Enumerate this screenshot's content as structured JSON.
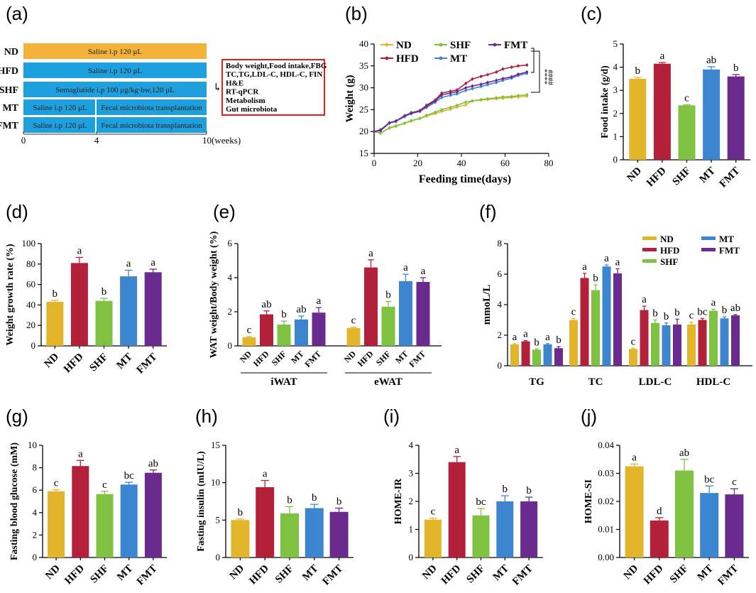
{
  "colors": {
    "ND": "#E3B52A",
    "HFD": "#B3203A",
    "SHF": "#7FC241",
    "MT": "#3D86CF",
    "FMT": "#6B2A8E",
    "timeline_orange": "#F4B23A",
    "timeline_blue": "#1FA0DE",
    "box_red": "#E0201B"
  },
  "chart_data": [
    {
      "panel": "(a)",
      "type": "table",
      "rows": [
        {
          "group": "ND",
          "segments": [
            "Saline i.p 120 μL"
          ]
        },
        {
          "group": "HFD",
          "segments": [
            "Saline i.p 120 μL"
          ]
        },
        {
          "group": "SHF",
          "segments": [
            "Semaglutide i.p 100 μg/kg·bw,120 μL"
          ]
        },
        {
          "group": "MT",
          "segments": [
            "Saline i.p 120 μL",
            "Fecal microbiota transplantation"
          ]
        },
        {
          "group": "FMT",
          "segments": [
            "Saline i.p 120 μL",
            "Fecal microbiota transplantation"
          ]
        }
      ],
      "split_week": 4,
      "total_weeks": 10,
      "axis_ticks": [
        "0",
        "4",
        "10(weeks)"
      ],
      "arrow_symbol": "↳",
      "outcomes": [
        "Body weight,Food intake,FBG",
        "TC,TG,LDL-C, HDL-C, FIN",
        "H&E",
        "RT-qPCR",
        "Metabolism",
        "Gut microbiota"
      ]
    },
    {
      "panel": "(b)",
      "type": "line",
      "xlabel": "Feeding time(days)",
      "ylabel": "Weight (g)",
      "xlim": [
        0,
        80
      ],
      "ylim": [
        15,
        40
      ],
      "xticks": [
        0,
        20,
        40,
        60,
        80
      ],
      "yticks": [
        15,
        20,
        25,
        30,
        35,
        40
      ],
      "legend": [
        "ND",
        "SHF",
        "FMT",
        "HFD",
        "MT"
      ],
      "significance": [
        "****",
        "####"
      ],
      "x": [
        0,
        3,
        7,
        10,
        14,
        17,
        21,
        24,
        28,
        31,
        35,
        38,
        42,
        45,
        49,
        52,
        56,
        59,
        63,
        66,
        70
      ],
      "series": [
        {
          "name": "ND",
          "values": [
            20,
            19.6,
            20.9,
            21.3,
            21.9,
            22.4,
            23.0,
            23.5,
            24.1,
            24.6,
            25.1,
            25.6,
            26.1,
            27.0,
            27.2,
            27.3,
            27.5,
            27.6,
            27.8,
            27.9,
            28.1
          ]
        },
        {
          "name": "HFD",
          "values": [
            20,
            20.4,
            22.0,
            22.4,
            23.6,
            24.3,
            24.8,
            26.0,
            27.2,
            28.8,
            29.2,
            29.5,
            31.0,
            32.0,
            32.6,
            33.0,
            33.6,
            34.3,
            34.7,
            35.0,
            35.2
          ]
        },
        {
          "name": "SHF",
          "values": [
            20,
            19.7,
            20.8,
            21.2,
            21.9,
            22.5,
            23.0,
            23.7,
            24.4,
            25.0,
            25.5,
            26.0,
            26.7,
            27.0,
            27.3,
            27.5,
            27.7,
            27.9,
            28.0,
            28.2,
            28.4
          ]
        },
        {
          "name": "MT",
          "values": [
            20,
            20.2,
            21.9,
            22.3,
            23.4,
            24.1,
            24.6,
            25.5,
            26.7,
            27.8,
            28.3,
            28.6,
            29.4,
            29.8,
            30.3,
            30.7,
            31.2,
            31.7,
            32.2,
            32.8,
            33.3
          ]
        },
        {
          "name": "FMT",
          "values": [
            20,
            20.3,
            22.0,
            22.4,
            23.6,
            24.2,
            24.7,
            25.8,
            27.0,
            28.4,
            28.8,
            29.1,
            30.0,
            30.4,
            30.8,
            31.2,
            31.7,
            32.1,
            32.5,
            33.1,
            33.6
          ]
        }
      ]
    },
    {
      "panel": "(c)",
      "type": "bar",
      "ylabel": "Food intake (g/d)",
      "ylim": [
        0,
        5
      ],
      "yticks": [
        0,
        1,
        2,
        3,
        4,
        5
      ],
      "categories": [
        "ND",
        "HFD",
        "SHF",
        "MT",
        "FMT"
      ],
      "values": [
        3.5,
        4.15,
        2.35,
        3.9,
        3.6
      ],
      "errors": [
        0.06,
        0.05,
        0.02,
        0.12,
        0.08
      ],
      "letters": [
        "b",
        "a",
        "c",
        "ab",
        "b"
      ]
    },
    {
      "panel": "(d)",
      "type": "bar",
      "ylabel": "Weight growth rate (%)",
      "ylim": [
        0,
        100
      ],
      "yticks": [
        0,
        20,
        40,
        60,
        80,
        100
      ],
      "categories": [
        "ND",
        "HFD",
        "SHF",
        "MT",
        "FMT"
      ],
      "values": [
        43,
        81,
        44,
        68,
        72
      ],
      "errors": [
        1.5,
        5.5,
        2.5,
        6,
        3
      ],
      "letters": [
        "b",
        "a",
        "b",
        "a",
        "a"
      ]
    },
    {
      "panel": "(e)",
      "type": "bar",
      "ylabel": "WAT weight/Body weight (%)",
      "ylim": [
        0,
        6
      ],
      "yticks": [
        0,
        2,
        4,
        6
      ],
      "groups": [
        "iWAT",
        "eWAT"
      ],
      "categories": [
        "ND",
        "HFD",
        "SHF",
        "MT",
        "FMT"
      ],
      "series": [
        {
          "name": "iWAT",
          "values": [
            0.5,
            1.85,
            1.25,
            1.55,
            1.95
          ],
          "errors": [
            0.05,
            0.2,
            0.2,
            0.2,
            0.3
          ],
          "letters": [
            "c",
            "ab",
            "b",
            "ab",
            "a"
          ]
        },
        {
          "name": "eWAT",
          "values": [
            1.05,
            4.6,
            2.3,
            3.8,
            3.75
          ],
          "errors": [
            0.05,
            0.45,
            0.3,
            0.4,
            0.25
          ],
          "letters": [
            "c",
            "a",
            "b",
            "a",
            "a"
          ]
        }
      ]
    },
    {
      "panel": "(f)",
      "type": "bar",
      "ylabel": "mmoL/L",
      "ylim": [
        0,
        8
      ],
      "yticks": [
        0,
        2,
        4,
        6,
        8
      ],
      "groups": [
        "TG",
        "TC",
        "LDL-C",
        "HDL-C"
      ],
      "legend": [
        "ND",
        "MT",
        "HFD",
        "FMT",
        "SHF"
      ],
      "series": [
        {
          "name": "ND",
          "values": [
            1.4,
            3.0,
            1.1,
            2.7
          ],
          "errors": [
            0.05,
            0.1,
            0.05,
            0.15
          ],
          "letters": [
            "a",
            "c",
            "c",
            "c"
          ]
        },
        {
          "name": "HFD",
          "values": [
            1.6,
            5.75,
            3.65,
            3.0
          ],
          "errors": [
            0.05,
            0.3,
            0.25,
            0.1
          ],
          "letters": [
            "a",
            "a",
            "a",
            "bc"
          ]
        },
        {
          "name": "SHF",
          "values": [
            1.05,
            4.95,
            2.8,
            3.6
          ],
          "errors": [
            0.05,
            0.35,
            0.2,
            0.1
          ],
          "letters": [
            "b",
            "b",
            "b",
            "a"
          ]
        },
        {
          "name": "MT",
          "values": [
            1.4,
            6.5,
            2.65,
            3.1
          ],
          "errors": [
            0.05,
            0.1,
            0.15,
            0.1
          ],
          "letters": [
            "a",
            "a",
            "b",
            "b"
          ]
        },
        {
          "name": "FMT",
          "values": [
            1.15,
            6.05,
            2.7,
            3.3
          ],
          "errors": [
            0.1,
            0.3,
            0.35,
            0.05
          ],
          "letters": [
            "b",
            "a",
            "b",
            "ab"
          ]
        }
      ]
    },
    {
      "panel": "(g)",
      "type": "bar",
      "ylabel": "Fasting blood glucose (mM)",
      "ylim": [
        0,
        10
      ],
      "yticks": [
        0,
        2,
        4,
        6,
        8,
        10
      ],
      "categories": [
        "ND",
        "HFD",
        "SHF",
        "MT",
        "FMT"
      ],
      "values": [
        5.9,
        8.15,
        5.65,
        6.5,
        7.55
      ],
      "errors": [
        0.15,
        0.5,
        0.25,
        0.2,
        0.25
      ],
      "letters": [
        "c",
        "a",
        "c",
        "bc",
        "ab"
      ]
    },
    {
      "panel": "(h)",
      "type": "bar",
      "ylabel": "Fasting insulin (mIU/L)",
      "ylim": [
        0,
        15
      ],
      "yticks": [
        0,
        5,
        10,
        15
      ],
      "categories": [
        "ND",
        "HFD",
        "SHF",
        "MT",
        "FMT"
      ],
      "values": [
        5.0,
        9.4,
        5.9,
        6.6,
        6.1
      ],
      "errors": [
        0.15,
        0.9,
        0.9,
        0.5,
        0.5
      ],
      "letters": [
        "b",
        "a",
        "b",
        "b",
        "b"
      ]
    },
    {
      "panel": "(i)",
      "type": "bar",
      "ylabel": "HOME-IR",
      "ylim": [
        0,
        4
      ],
      "yticks": [
        0,
        1,
        2,
        3,
        4
      ],
      "categories": [
        "ND",
        "HFD",
        "SHF",
        "MT",
        "FMT"
      ],
      "values": [
        1.35,
        3.4,
        1.5,
        2.0,
        2.0
      ],
      "errors": [
        0.05,
        0.2,
        0.25,
        0.2,
        0.15
      ],
      "letters": [
        "c",
        "a",
        "bc",
        "b",
        "b"
      ]
    },
    {
      "panel": "(j)",
      "type": "bar",
      "ylabel": "HOME-SI",
      "ylim": [
        0,
        0.04
      ],
      "yticks": [
        "0.00",
        "0.01",
        "0.02",
        "0.03",
        "0.04"
      ],
      "categories": [
        "ND",
        "HFD",
        "SHF",
        "MT",
        "FMT"
      ],
      "values": [
        0.0325,
        0.0132,
        0.031,
        0.023,
        0.0225
      ],
      "errors": [
        0.0008,
        0.001,
        0.004,
        0.0025,
        0.002
      ],
      "letters": [
        "a",
        "d",
        "ab",
        "bc",
        "c"
      ]
    }
  ]
}
